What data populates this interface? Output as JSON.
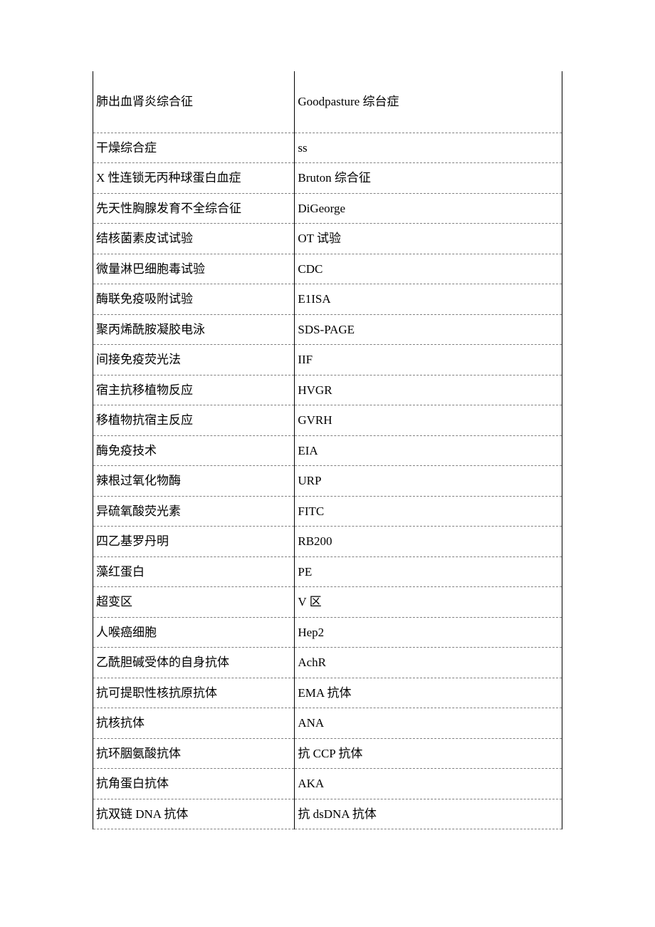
{
  "table": {
    "rows": [
      {
        "col1": "肺出血肾炎综合征",
        "col2": "Goodpasture 综台症",
        "class": "first-row"
      },
      {
        "col1": "干燥综合症",
        "col2": "ss"
      },
      {
        "col1": "X 性连锁无丙种球蛋白血症",
        "col2": "Bruton 综合征"
      },
      {
        "col1": "先天性胸腺发育不全综合征",
        "col2": "DiGeorge"
      },
      {
        "col1": "结核菌素皮试试验",
        "col2": "OT 试验"
      },
      {
        "col1": "微量淋巴细胞毒试验",
        "col2": "CDC"
      },
      {
        "col1": "酶联免疫吸附试验",
        "col2": "E1ISA"
      },
      {
        "col1": "聚丙烯酰胺凝胶电泳",
        "col2": "SDS-PAGE"
      },
      {
        "col1": "间接免疫荧光法",
        "col2": "IIF"
      },
      {
        "col1": "宿主抗移植物反应",
        "col2": "HVGR"
      },
      {
        "col1": "移植物抗宿主反应",
        "col2": "GVRH"
      },
      {
        "col1": "酶免疫技术",
        "col2": "EIA"
      },
      {
        "col1": "辣根过氧化物酶",
        "col2": "URP"
      },
      {
        "col1": "异硫氧酸荧光素",
        "col2": "FITC"
      },
      {
        "col1": "四乙基罗丹明",
        "col2": "RB200"
      },
      {
        "col1": "藻红蛋白",
        "col2": "PE"
      },
      {
        "col1": "超变区",
        "col2": "V 区"
      },
      {
        "col1": "人喉癌细胞",
        "col2": "Hep2"
      },
      {
        "col1": "乙酰胆碱受体的自身抗体",
        "col2": "AchR"
      },
      {
        "col1": "抗可提职性核抗原抗体",
        "col2": "EMA 抗体"
      },
      {
        "col1": "抗核抗体",
        "col2": "ANA"
      },
      {
        "col1": "抗环胭氨酸抗体",
        "col2": "抗 CCP 抗体"
      },
      {
        "col1": "抗角蛋白抗体",
        "col2": "AKA"
      },
      {
        "col1": "抗双链 DNA 抗体",
        "col2": "抗 dsDNA 抗体"
      }
    ],
    "colors": {
      "background": "#ffffff",
      "text": "#000000",
      "border_solid": "#000000",
      "border_dashed": "#808080"
    },
    "fontsize": 17
  }
}
